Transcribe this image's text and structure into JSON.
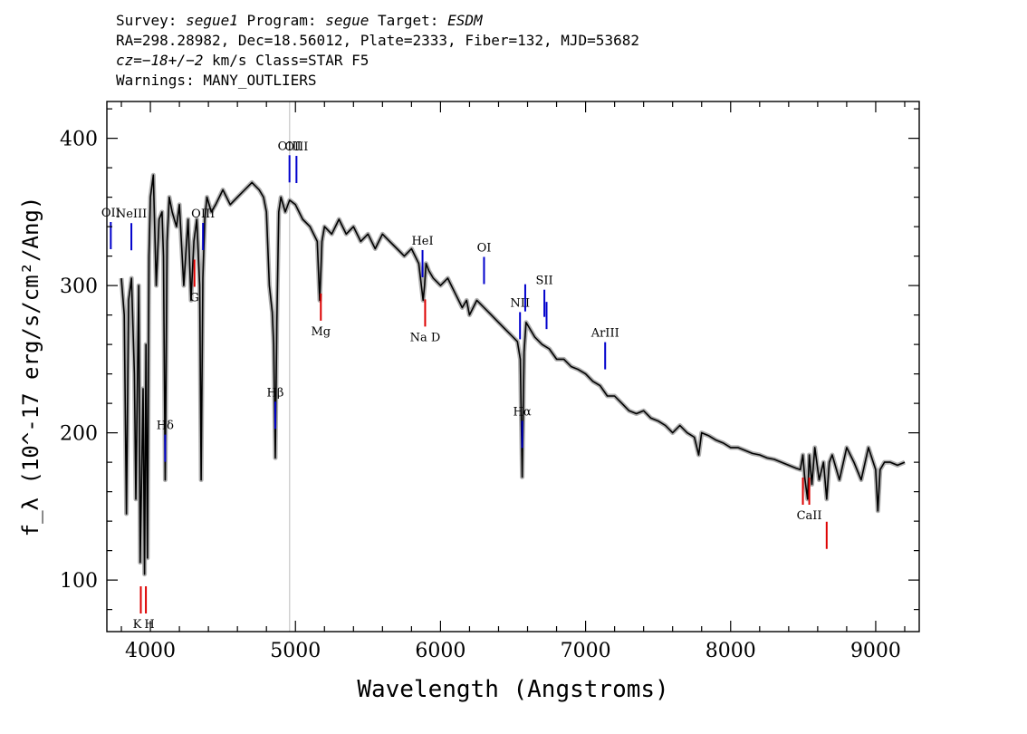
{
  "header": {
    "line1": {
      "a": "Survey: ",
      "b": "segue1",
      "c": " Program: ",
      "d": "segue",
      "e": " Target: ",
      "f": "ESDM"
    },
    "line2": "RA=298.28982, Dec=18.56012, Plate=2333, Fiber=132, MJD=53682",
    "line3": {
      "a": "cz=",
      "b": "−18+/−2",
      "c": " km/s Class=STAR F5"
    },
    "line4": "Warnings: MANY_OUTLIERS"
  },
  "colors": {
    "spectrum": "#000000",
    "error_band": "#b0b0b0",
    "emission": "#0000cc",
    "absorption": "#dd0000",
    "marker_line": "#bbbbbb"
  },
  "chart_data": {
    "type": "line",
    "xlabel": "Wavelength (Angstroms)",
    "ylabel": "f_λ (10^-17 erg/s/cm²/Ang)",
    "xlim": [
      3700,
      9300
    ],
    "ylim": [
      65,
      425
    ],
    "xticks": [
      4000,
      5000,
      6000,
      7000,
      8000,
      9000
    ],
    "yticks": [
      100,
      200,
      300,
      400
    ],
    "grid": false,
    "reference_line_x": 4960,
    "series": [
      {
        "x": [
          3800,
          3820,
          3835,
          3850,
          3870,
          3890,
          3900,
          3920,
          3930,
          3950,
          3960,
          3970,
          3980,
          3990,
          4000,
          4020,
          4040,
          4060,
          4080,
          4090,
          4102,
          4115,
          4130,
          4150,
          4180,
          4200,
          4230,
          4260,
          4280,
          4300,
          4320,
          4340,
          4350,
          4362,
          4375,
          4390,
          4420,
          4450,
          4500,
          4550,
          4600,
          4650,
          4700,
          4750,
          4780,
          4800,
          4820,
          4840,
          4850,
          4861,
          4872,
          4885,
          4900,
          4930,
          4960,
          5000,
          5050,
          5100,
          5150,
          5167,
          5175,
          5183,
          5200,
          5250,
          5300,
          5350,
          5400,
          5450,
          5500,
          5550,
          5600,
          5650,
          5700,
          5750,
          5800,
          5850,
          5880,
          5890,
          5900,
          5920,
          5950,
          6000,
          6050,
          6100,
          6150,
          6180,
          6200,
          6250,
          6300,
          6350,
          6400,
          6450,
          6500,
          6530,
          6550,
          6563,
          6576,
          6590,
          6620,
          6650,
          6700,
          6750,
          6800,
          6850,
          6900,
          6950,
          7000,
          7050,
          7100,
          7150,
          7200,
          7250,
          7300,
          7350,
          7400,
          7450,
          7500,
          7550,
          7600,
          7650,
          7700,
          7750,
          7780,
          7800,
          7850,
          7900,
          7950,
          8000,
          8050,
          8100,
          8150,
          8200,
          8250,
          8300,
          8350,
          8400,
          8450,
          8480,
          8498,
          8510,
          8530,
          8542,
          8560,
          8580,
          8610,
          8640,
          8662,
          8680,
          8700,
          8750,
          8800,
          8850,
          8900,
          8950,
          9000,
          9015,
          9030,
          9060,
          9100,
          9150,
          9200
        ],
        "y": [
          305,
          280,
          145,
          290,
          305,
          240,
          155,
          300,
          112,
          230,
          104,
          260,
          115,
          320,
          360,
          375,
          300,
          345,
          350,
          320,
          168,
          330,
          360,
          350,
          340,
          355,
          300,
          345,
          290,
          330,
          345,
          300,
          168,
          305,
          345,
          360,
          350,
          355,
          365,
          355,
          360,
          365,
          370,
          365,
          360,
          350,
          300,
          282,
          260,
          183,
          275,
          350,
          360,
          350,
          358,
          355,
          345,
          340,
          330,
          290,
          310,
          330,
          340,
          335,
          345,
          335,
          340,
          330,
          335,
          325,
          335,
          330,
          325,
          320,
          325,
          315,
          290,
          300,
          315,
          310,
          305,
          300,
          305,
          295,
          285,
          290,
          280,
          290,
          285,
          280,
          275,
          270,
          265,
          262,
          250,
          170,
          255,
          275,
          270,
          265,
          260,
          257,
          250,
          250,
          245,
          243,
          240,
          235,
          232,
          225,
          225,
          220,
          215,
          213,
          215,
          210,
          208,
          205,
          200,
          205,
          200,
          197,
          185,
          200,
          198,
          195,
          193,
          190,
          190,
          188,
          186,
          185,
          183,
          182,
          180,
          178,
          176,
          175,
          185,
          170,
          155,
          185,
          165,
          190,
          168,
          180,
          155,
          180,
          185,
          168,
          190,
          180,
          168,
          190,
          175,
          147,
          175,
          180,
          180,
          178,
          180
        ]
      }
    ],
    "emission_lines": [
      {
        "label": "Hδ",
        "x": 4102
      },
      {
        "label": "OIII",
        "x": 4363
      },
      {
        "label": "Hβ",
        "x": 4861
      },
      {
        "label": "OIII",
        "x": 4959
      },
      {
        "label": "OIII",
        "x": 5007
      },
      {
        "label": "NeIII",
        "x": 3869
      },
      {
        "label": "HeI",
        "x": 5876
      },
      {
        "label": "OI",
        "x": 6300
      },
      {
        "label": "Hα",
        "x": 6563
      },
      {
        "label": "NII",
        "x": 6548
      },
      {
        "label": "NII",
        "x": 6584
      },
      {
        "label": "SII",
        "x": 6716
      },
      {
        "label": "SII",
        "x": 6731
      },
      {
        "label": "ArIII",
        "x": 7135
      },
      {
        "label": "OII",
        "x": 3727
      }
    ],
    "absorption_lines": [
      {
        "label": "K",
        "x": 3934
      },
      {
        "label": "H",
        "x": 3969
      },
      {
        "label": "G",
        "x": 4304
      },
      {
        "label": "Mg",
        "x": 5175
      },
      {
        "label": "Na D",
        "x": 5894
      },
      {
        "label": "CaII",
        "x": 8498
      },
      {
        "label": "CaII",
        "x": 8542
      },
      {
        "label": "CaII",
        "x": 8662
      }
    ]
  }
}
